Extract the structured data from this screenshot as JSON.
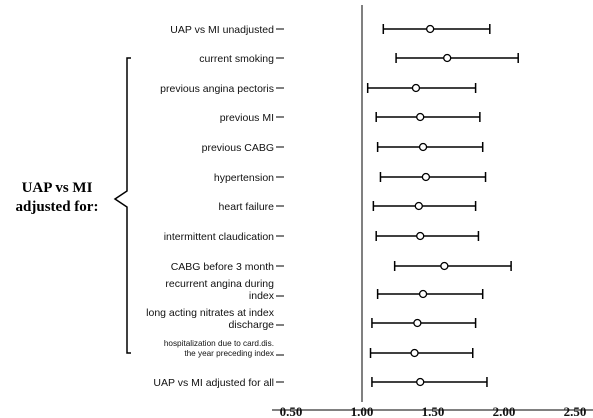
{
  "chart_data": {
    "type": "forest",
    "title": "",
    "xlabel": "",
    "ylabel": "",
    "xlim": [
      0.31,
      2.5
    ],
    "reference_line": 1.0,
    "x_ticks": [
      "0.50",
      "1.00",
      "1.50",
      "2.00",
      "2.50"
    ],
    "x_tick_values": [
      0.5,
      1.0,
      1.5,
      2.0,
      2.5
    ],
    "group_label": [
      "UAP vs MI",
      "adjusted for:"
    ],
    "rows": [
      {
        "label": [
          "UAP vs MI unadjusted"
        ],
        "estimate": 1.48,
        "low": 1.15,
        "high": 1.9
      },
      {
        "label": [
          "current smoking"
        ],
        "estimate": 1.6,
        "low": 1.24,
        "high": 2.1
      },
      {
        "label": [
          "previous angina pectoris"
        ],
        "estimate": 1.38,
        "low": 1.04,
        "high": 1.8
      },
      {
        "label": [
          "previous MI"
        ],
        "estimate": 1.41,
        "low": 1.1,
        "high": 1.83
      },
      {
        "label": [
          "previous CABG"
        ],
        "estimate": 1.43,
        "low": 1.11,
        "high": 1.85
      },
      {
        "label": [
          "hypertension"
        ],
        "estimate": 1.45,
        "low": 1.13,
        "high": 1.87
      },
      {
        "label": [
          "heart failure"
        ],
        "estimate": 1.4,
        "low": 1.08,
        "high": 1.8
      },
      {
        "label": [
          "intermittent claudication"
        ],
        "estimate": 1.41,
        "low": 1.1,
        "high": 1.82
      },
      {
        "label": [
          "CABG before 3 month"
        ],
        "estimate": 1.58,
        "low": 1.23,
        "high": 2.05
      },
      {
        "label": [
          "recurrent angina during",
          "index"
        ],
        "estimate": 1.43,
        "low": 1.11,
        "high": 1.85
      },
      {
        "label": [
          "long acting nitrates at index",
          "discharge"
        ],
        "estimate": 1.39,
        "low": 1.07,
        "high": 1.8
      },
      {
        "label": [
          "hospitalization due to card.dis.",
          "the year preceding index"
        ],
        "estimate": 1.37,
        "low": 1.06,
        "high": 1.78,
        "small": true
      },
      {
        "label": [
          "UAP vs MI adjusted for all"
        ],
        "estimate": 1.41,
        "low": 1.07,
        "high": 1.88
      }
    ],
    "colors": {
      "marks": "#000000",
      "text": "#111111"
    }
  }
}
